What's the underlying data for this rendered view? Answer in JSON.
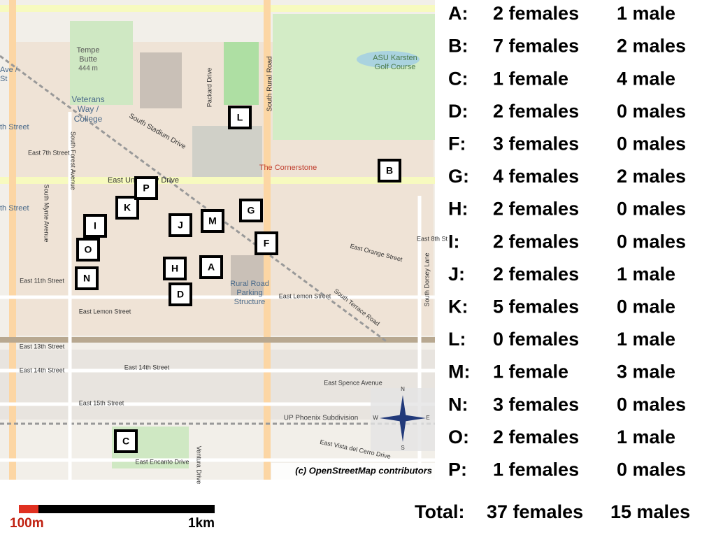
{
  "markers": [
    "A",
    "B",
    "C",
    "D",
    "F",
    "G",
    "H",
    "I",
    "J",
    "K",
    "L",
    "M",
    "N",
    "O",
    "P"
  ],
  "table": {
    "rows": [
      {
        "site": "A:",
        "females": "2 females",
        "males": "1 male"
      },
      {
        "site": "B:",
        "females": "7 females",
        "males": "2 males"
      },
      {
        "site": "C:",
        "females": "1 female",
        "males": "4 male"
      },
      {
        "site": "D:",
        "females": "2 females",
        "males": "0 males"
      },
      {
        "site": "F:",
        "females": "3 females",
        "males": "0 males"
      },
      {
        "site": "G:",
        "females": "4 females",
        "males": "2 males"
      },
      {
        "site": "H:",
        "females": "2 females",
        "males": "0 males"
      },
      {
        "site": "I:",
        "females": "2 females",
        "males": "0 males"
      },
      {
        "site": "J:",
        "females": "2 females",
        "males": "1 male"
      },
      {
        "site": "K:",
        "females": "5 females",
        "males": "0 male"
      },
      {
        "site": "L:",
        "females": "0 females",
        "males": "1 male"
      },
      {
        "site": "M:",
        "females": "1 female",
        "males": "3 male"
      },
      {
        "site": "N:",
        "females": "3 females",
        "males": "0 males"
      },
      {
        "site": "O:",
        "females": "2 females",
        "males": "1 male"
      },
      {
        "site": "P:",
        "females": "1 females",
        "males": "0 males"
      }
    ],
    "total": {
      "label": "Total:",
      "females": "37 females",
      "males": "15 males"
    }
  },
  "scale": {
    "small": "100m",
    "large": "1km"
  },
  "attribution": "(c) OpenStreetMap contributors",
  "map": {
    "labels": [
      "Tempe",
      "Butte",
      "444 m",
      "Veterans",
      "Way /",
      "College",
      "South Stadium Drive",
      "Packard Drive",
      "South Rural Road",
      "ASU Karsten",
      "Golf Course",
      "The Cornerstone",
      "East University Drive",
      "East 7th Street",
      "South Forest Avenue",
      "South Mynte Avenue",
      "East 8th St",
      "East Orange Street",
      "South Dorsey Lane",
      "East Lemon Street",
      "East Lemon Street",
      "East 11th Street",
      "Rural Road",
      "Parking",
      "Structure",
      "South Terrace Road",
      "East 13th Street",
      "East 14th Street",
      "East 14th Street",
      "East Spence Avenue",
      "East 15th Street",
      "UP Phoenix Subdivision",
      "East Vista del Cerro Drive",
      "East Encanto Drive",
      "Ventura Drive",
      "th Street",
      "th Street",
      "Ave /",
      "St"
    ],
    "compass": [
      "N",
      "E",
      "S",
      "W"
    ]
  }
}
